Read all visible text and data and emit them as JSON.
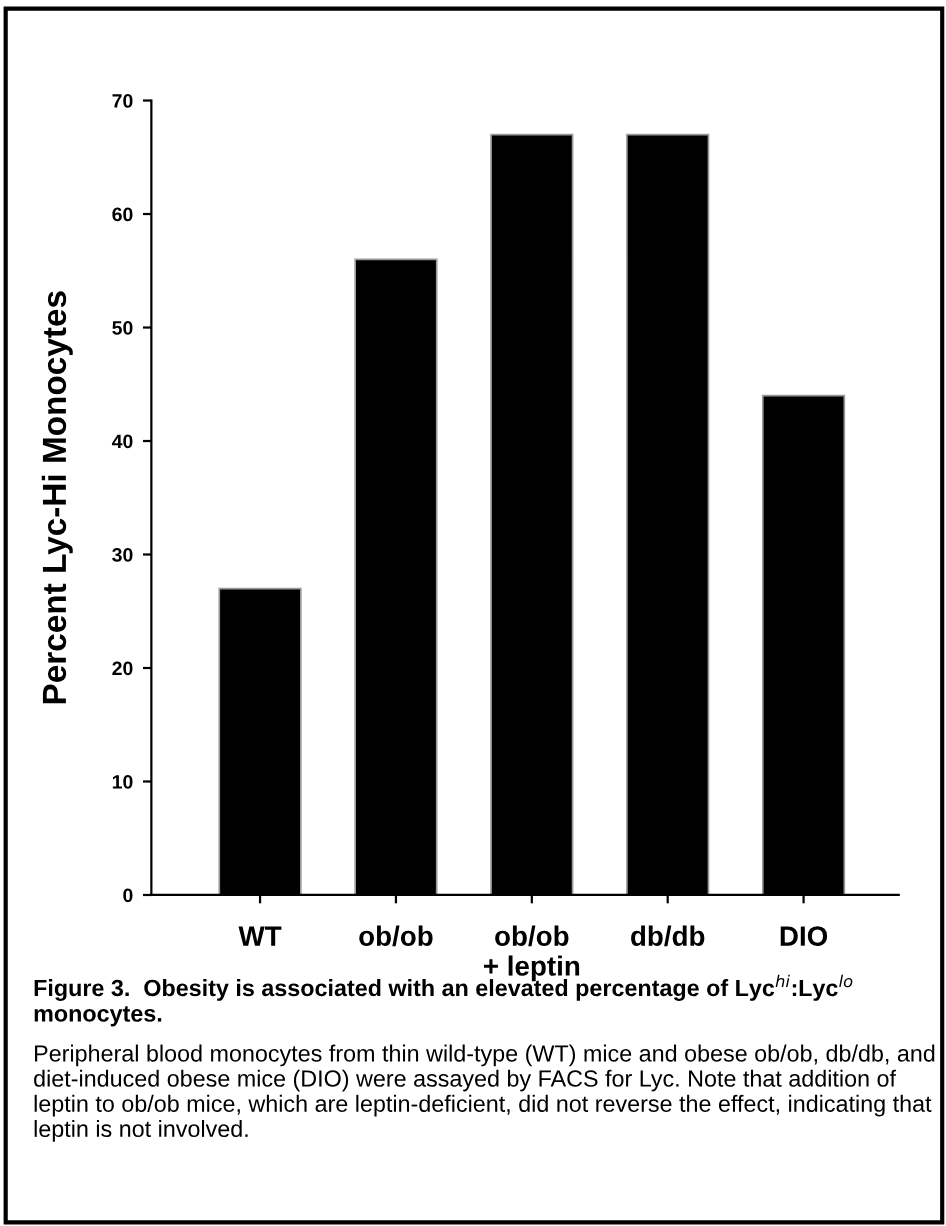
{
  "chart_data": {
    "type": "bar",
    "ylabel": "Percent Lyc-Hi Monocytes",
    "categories": [
      "WT",
      "ob/ob",
      "ob/ob\n+ leptin",
      "db/db",
      "DIO"
    ],
    "values": [
      27,
      56,
      67,
      67,
      44
    ],
    "color": "#000000",
    "ylim": [
      0,
      70
    ],
    "yticks": [
      0,
      10,
      20,
      30,
      40,
      50,
      60,
      70
    ],
    "grid": false,
    "annotations": [
      "Figure 3.  Obesity is associated with an elevated percentage of Lyc$^{hi}$:Lyc$^{lo}$ monocytes.",
      "Peripheral blood monocytes from thin wild-type (WT) mice and obese ob/ob, db/db, and diet-induced obese mice (DIO) were assayed by FACS for Lyc. Note that addition of leptin to ob/ob mice, which are leptin-deficient, did not reverse the effect, indicating that leptin is not involved."
    ]
  }
}
